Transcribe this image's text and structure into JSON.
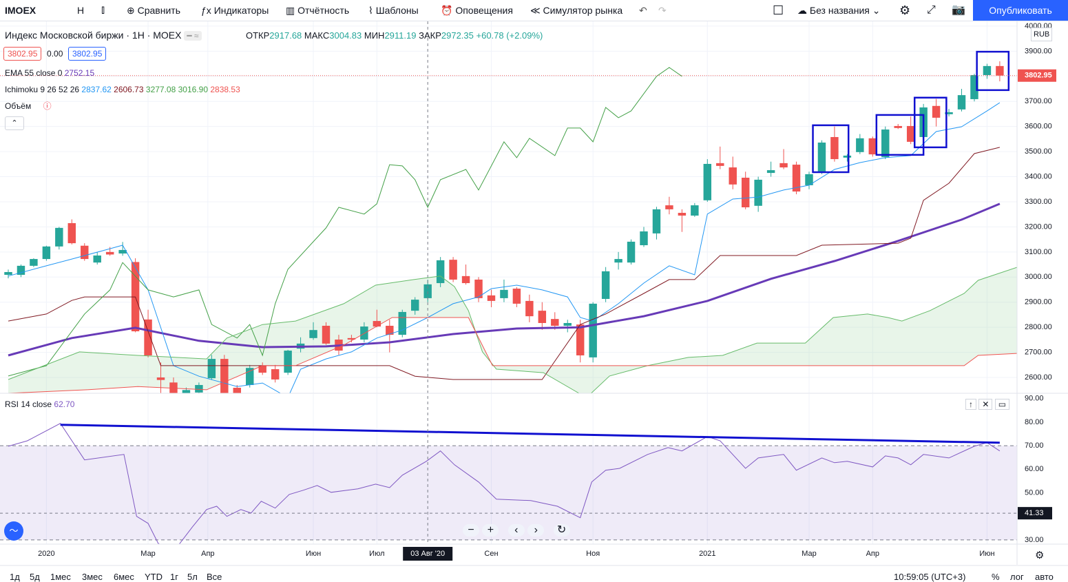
{
  "toolbar": {
    "symbol": "IMOEX",
    "interval": "Н",
    "items": [
      "Сравнить",
      "Индикаторы",
      "Отчётность",
      "Шаблоны",
      "Оповещения",
      "Симулятор рынка"
    ],
    "layout_name": "Без названия",
    "publish": "Опубликовать"
  },
  "legend": {
    "title": "Индекс Московской биржи · 1Н · MOEX",
    "ohlc": [
      {
        "label": "ОТКР",
        "value": "2917.68"
      },
      {
        "label": "МАКС",
        "value": "3004.83"
      },
      {
        "label": "МИН",
        "value": "2911.19"
      },
      {
        "label": "ЗАКР",
        "value": "2972.35"
      }
    ],
    "change": "+60.78 (+2.09%)",
    "bid": "3802.95",
    "spread": "0.00",
    "ask": "3802.95",
    "ema_name": "EMA 55 close 0",
    "ema_value": "2752.15",
    "ichimoku_name": "Ichimoku 9 26 52 26",
    "ichimoku_values": [
      "2837.62",
      "2606.73",
      "3277.08",
      "3016.90",
      "2838.53"
    ],
    "volume_name": "Объём",
    "rsi_name": "RSI 14 close",
    "rsi_value": "62.70",
    "currency": "RUB"
  },
  "bottom_bar": {
    "ranges": [
      "1д",
      "5д",
      "1мес",
      "3мес",
      "6мес",
      "YTD",
      "1г",
      "5л",
      "Все"
    ],
    "clock": "10:59:05 (UTC+3)",
    "options": [
      "%",
      "лог",
      "авто"
    ]
  },
  "chart_data": [
    {
      "type": "candlestick",
      "up_color": "#26a69a",
      "down_color": "#ef5350",
      "xlim": [
        -0.65,
        79.36
      ],
      "ylim": [
        2537,
        4019
      ],
      "xticks": [
        {
          "value": 3,
          "label": "2020"
        },
        {
          "value": 11,
          "label": "Мар"
        },
        {
          "value": 15.7,
          "label": "Апр"
        },
        {
          "value": 24,
          "label": "Июн"
        },
        {
          "value": 29,
          "label": "Июл"
        },
        {
          "value": 38,
          "label": "Сен"
        },
        {
          "value": 46,
          "label": "Ноя"
        },
        {
          "value": 55,
          "label": "2021"
        },
        {
          "value": 63,
          "label": "Мар"
        },
        {
          "value": 68,
          "label": "Апр"
        },
        {
          "value": 77,
          "label": "Июн"
        }
      ],
      "yticks": [
        {
          "value": 2600,
          "label": "2600.00"
        },
        {
          "value": 2700,
          "label": "2700.00"
        },
        {
          "value": 2800,
          "label": "2800.00"
        },
        {
          "value": 2900,
          "label": "2900.00"
        },
        {
          "value": 3000,
          "label": "3000.00"
        },
        {
          "value": 3100,
          "label": "3100.00"
        },
        {
          "value": 3200,
          "label": "3200.00"
        },
        {
          "value": 3300,
          "label": "3300.00"
        },
        {
          "value": 3400,
          "label": "3400.00"
        },
        {
          "value": 3500,
          "label": "3500.00"
        },
        {
          "value": 3600,
          "label": "3600.00"
        },
        {
          "value": 3700,
          "label": "3700.00"
        },
        {
          "value": 3800,
          "label": "3800.00"
        },
        {
          "value": 3900,
          "label": "3900.00"
        },
        {
          "value": 4000,
          "label": "4000.00"
        }
      ],
      "grid": true,
      "last_price": 3802.95,
      "x": [
        0,
        1,
        2,
        3,
        4,
        5,
        6,
        7,
        8,
        9,
        10,
        11,
        12,
        13,
        14,
        15,
        16,
        17,
        18,
        19,
        20,
        21,
        22,
        23,
        24,
        25,
        26,
        27,
        28,
        29,
        30,
        31,
        32,
        33,
        34,
        35,
        36,
        37,
        38,
        39,
        40,
        41,
        42,
        43,
        44,
        45,
        46,
        47,
        48,
        49,
        50,
        51,
        52,
        53,
        54,
        55,
        56,
        57,
        58,
        59,
        60,
        61,
        62,
        63,
        64,
        65,
        66,
        67,
        68,
        69,
        70,
        71,
        72,
        73,
        74,
        75,
        76,
        77,
        78
      ],
      "open": [
        3009,
        3009,
        3045,
        3072,
        3122,
        3215,
        3125,
        3058,
        3100,
        3094,
        3060,
        2831,
        2600,
        2580,
        2500,
        2540,
        2597,
        2674,
        2559,
        2570,
        2647,
        2633,
        2619,
        2715,
        2757,
        2806,
        2751,
        2757,
        2751,
        2825,
        2806,
        2770,
        2866,
        2916,
        2976,
        3069,
        3004,
        2990,
        2927,
        2916,
        2954,
        2905,
        2866,
        2833,
        2806,
        2811,
        2680,
        2913,
        3058,
        3058,
        3127,
        3174,
        3286,
        3256,
        3245,
        3306,
        3454,
        3437,
        3396,
        3284,
        3415,
        3454,
        3448,
        3366,
        3421,
        3558,
        3476,
        3498,
        3553,
        3478,
        3602,
        3602,
        3558,
        3682,
        3649,
        3668,
        3709,
        3805,
        3841
      ],
      "high": [
        3030,
        3050,
        3075,
        3125,
        3200,
        3230,
        3135,
        3100,
        3120,
        3140,
        3075,
        2870,
        2660,
        2600,
        2560,
        2580,
        2690,
        2690,
        2570,
        2650,
        2660,
        2650,
        2710,
        2760,
        2820,
        2820,
        2770,
        2770,
        2820,
        2870,
        2830,
        2870,
        2920,
        2990,
        3080,
        3080,
        3050,
        3000,
        2950,
        2990,
        2960,
        2930,
        2900,
        2860,
        2830,
        2830,
        2900,
        3040,
        3100,
        3150,
        3200,
        3280,
        3320,
        3270,
        3295,
        3470,
        3520,
        3480,
        3420,
        3400,
        3460,
        3510,
        3460,
        3420,
        3545,
        3600,
        3490,
        3570,
        3560,
        3600,
        3610,
        3640,
        3690,
        3710,
        3670,
        3750,
        3810,
        3850,
        3860
      ],
      "low": [
        2995,
        3000,
        3040,
        3065,
        3110,
        3130,
        3065,
        3050,
        3085,
        3085,
        2780,
        2680,
        2530,
        2500,
        2480,
        2520,
        2590,
        2520,
        2520,
        2560,
        2610,
        2580,
        2610,
        2700,
        2750,
        2730,
        2690,
        2740,
        2740,
        2800,
        2700,
        2760,
        2850,
        2900,
        2960,
        2980,
        2970,
        2900,
        2880,
        2900,
        2880,
        2820,
        2790,
        2790,
        2780,
        2660,
        2660,
        2900,
        3030,
        3050,
        3120,
        3150,
        3250,
        3180,
        3240,
        3300,
        3430,
        3350,
        3270,
        3260,
        3400,
        3430,
        3330,
        3350,
        3410,
        3460,
        3460,
        3490,
        3480,
        3470,
        3590,
        3530,
        3540,
        3600,
        3640,
        3660,
        3700,
        3790,
        3780
      ],
      "close": [
        3020,
        3045,
        3072,
        3122,
        3196,
        3135,
        3072,
        3086,
        3090,
        3108,
        2784,
        2688,
        2590,
        2520,
        2550,
        2570,
        2674,
        2537,
        2537,
        2638,
        2619,
        2592,
        2707,
        2735,
        2789,
        2735,
        2707,
        2751,
        2803,
        2803,
        2770,
        2861,
        2910,
        2971,
        3067,
        2990,
        2976,
        2916,
        2905,
        2949,
        2894,
        2844,
        2817,
        2806,
        2817,
        2688,
        2894,
        3023,
        3072,
        3141,
        3182,
        3270,
        3270,
        3245,
        3286,
        3451,
        3443,
        3369,
        3278,
        3388,
        3426,
        3437,
        3341,
        3410,
        3536,
        3470,
        3484,
        3553,
        3489,
        3588,
        3594,
        3539,
        3676,
        3635,
        3657,
        3725,
        3805,
        3841,
        3803
      ],
      "series": [
        {
          "name": "EMA 55",
          "color": "#673ab7",
          "x": [
            0,
            5,
            10,
            15,
            20,
            25,
            30,
            35,
            40,
            45,
            50,
            55,
            60,
            65,
            70,
            75,
            78
          ],
          "values": [
            2688,
            2757,
            2798,
            2746,
            2721,
            2724,
            2740,
            2773,
            2795,
            2800,
            2844,
            2905,
            2993,
            3064,
            3144,
            3229,
            3292
          ]
        },
        {
          "name": "Tenkan",
          "color": "#2196f3",
          "x": [
            0,
            3,
            5,
            8,
            9,
            11,
            13,
            15,
            18,
            20,
            22,
            23,
            25,
            27,
            29,
            31,
            33,
            35,
            37,
            38,
            40,
            42,
            44,
            45,
            46,
            48,
            50,
            52,
            54,
            55,
            57,
            59,
            61,
            63,
            65,
            67,
            69,
            71,
            73,
            75,
            77,
            78
          ],
          "values": [
            3004,
            3045,
            3072,
            3113,
            3127,
            2949,
            2647,
            2605,
            2564,
            2578,
            2520,
            2633,
            2674,
            2702,
            2757,
            2789,
            2839,
            2894,
            2921,
            2954,
            2968,
            2949,
            2921,
            2839,
            2825,
            2894,
            2976,
            3045,
            3009,
            3251,
            3311,
            3319,
            3347,
            3366,
            3429,
            3456,
            3476,
            3484,
            3580,
            3599,
            3662,
            3695
          ]
        },
        {
          "name": "Kijun",
          "color": "#801922",
          "x": [
            0,
            3,
            5,
            6,
            10,
            12,
            30,
            32,
            35,
            42,
            45,
            47,
            50,
            52,
            54,
            56,
            62,
            64,
            70,
            71,
            72,
            74,
            76,
            78
          ],
          "values": [
            2825,
            2853,
            2907,
            2921,
            2921,
            2647,
            2647,
            2605,
            2592,
            2592,
            2811,
            2853,
            2935,
            2990,
            2990,
            3086,
            3086,
            3127,
            3135,
            3155,
            3306,
            3374,
            3492,
            3517
          ]
        },
        {
          "name": "Chikou",
          "color": "#43a047",
          "x": [
            0,
            3,
            6,
            8,
            9,
            11,
            13,
            15,
            16,
            18,
            19,
            20,
            21,
            22,
            24,
            25,
            26,
            28,
            29,
            30,
            31,
            32,
            33,
            34,
            36,
            37,
            38,
            39,
            40,
            41,
            43,
            44,
            45,
            46,
            47,
            48,
            49,
            51,
            52,
            53
          ],
          "values": [
            2606,
            2647,
            2853,
            2949,
            3058,
            2949,
            2921,
            2949,
            2811,
            2757,
            2811,
            2688,
            2894,
            3031,
            3141,
            3196,
            3278,
            3251,
            3292,
            3448,
            3443,
            3388,
            3278,
            3388,
            3429,
            3347,
            3443,
            3539,
            3476,
            3553,
            3484,
            3594,
            3594,
            3539,
            3676,
            3635,
            3662,
            3800,
            3835,
            3800
          ]
        },
        {
          "name": "Span A",
          "color": "#66bb6a",
          "x": [
            0,
            5.6,
            10.2,
            15.6,
            17.2,
            20,
            22.6,
            26.4,
            28.9,
            31.9,
            34,
            35.1,
            36.2,
            37.3,
            38.4,
            42.1,
            44.9,
            45.5,
            47.3,
            50.3,
            53.5,
            56.2,
            58.9,
            62.7,
            64.9,
            67.6,
            69.2,
            70.3,
            72.5,
            75.2,
            76.3,
            79.36
          ],
          "values": [
            2592,
            2702,
            2688,
            2674,
            2757,
            2811,
            2825,
            2894,
            2968,
            2990,
            3004,
            2962,
            2866,
            2702,
            2633,
            2619,
            2537,
            2520,
            2606,
            2647,
            2680,
            2688,
            2737,
            2737,
            2839,
            2853,
            2839,
            2825,
            2866,
            2935,
            2987,
            3039
          ]
        },
        {
          "name": "Span B",
          "color": "#ef5350",
          "x": [
            0,
            6.2,
            10.2,
            15.6,
            20,
            22.6,
            26.4,
            30.2,
            36.2,
            38.1,
            75.2,
            76.3,
            79.36
          ],
          "values": [
            2537,
            2551,
            2564,
            2551,
            2647,
            2647,
            2729,
            2839,
            2839,
            2647,
            2647,
            2688,
            2696
          ]
        }
      ],
      "drawings": [
        {
          "x": [
            63.3,
            66.1
          ],
          "y": [
            3418,
            3605
          ]
        },
        {
          "x": [
            68.3,
            72.0
          ],
          "y": [
            3487,
            3646
          ]
        },
        {
          "x": [
            71.3,
            73.8
          ],
          "y": [
            3517,
            3715
          ]
        },
        {
          "x": [
            76.2,
            78.7
          ],
          "y": [
            3745,
            3898
          ]
        }
      ],
      "crosshair": {
        "x": 33,
        "label": "03 Авг '20"
      }
    },
    {
      "type": "line",
      "xlim": [
        -0.65,
        79.36
      ],
      "ylim": [
        28.2,
        92
      ],
      "yticks": [
        {
          "value": 30,
          "label": "30.00"
        },
        {
          "value": 40,
          "label": "40.00"
        },
        {
          "value": 50,
          "label": "50.00"
        },
        {
          "value": 60,
          "label": "60.00"
        },
        {
          "value": 70,
          "label": "70.00"
        },
        {
          "value": 80,
          "label": "80.00"
        },
        {
          "value": 90,
          "label": "90.00"
        }
      ],
      "band": [
        30,
        70
      ],
      "series": [
        {
          "name": "RSI",
          "color": "#7e57c2",
          "x": [
            0,
            1.5,
            4.1,
            6.0,
            9.1,
            10.1,
            11.0,
            11.8,
            13.0,
            14.5,
            15.6,
            16.4,
            17.2,
            18.3,
            19.1,
            19.9,
            21.0,
            22.1,
            23.2,
            24.3,
            25.4,
            27.5,
            28.9,
            30.0,
            31.0,
            32.9,
            34.0,
            35.1,
            37.0,
            38.4,
            41.1,
            43.2,
            45.0,
            45.9,
            47.0,
            48.1,
            50.3,
            51.9,
            53.0,
            55.0,
            56.0,
            58.0,
            59.0,
            61.0,
            62.0,
            64.0,
            65.0,
            66.0,
            68.0,
            69.0,
            70.0,
            71.0,
            72.0,
            74.0,
            76.0,
            77.0,
            78.0
          ],
          "values": [
            69.8,
            72.1,
            79.5,
            64,
            66.3,
            40,
            37,
            28.5,
            25,
            35.6,
            42.9,
            44.3,
            40,
            42.9,
            41.4,
            46.4,
            43.5,
            49.3,
            51.1,
            53.1,
            50.2,
            51.7,
            53.7,
            52.2,
            57.5,
            63.4,
            67.8,
            61.9,
            54.6,
            47.3,
            46.7,
            44.3,
            39.4,
            54.6,
            59.6,
            60.4,
            66.3,
            69.2,
            67.8,
            73.9,
            72.1,
            60.4,
            64.8,
            66.3,
            59.6,
            64.8,
            62.8,
            63.4,
            61,
            65.7,
            64.8,
            61.9,
            66.3,
            64.8,
            69.8,
            71.3,
            67.8
          ]
        }
      ],
      "trendline": {
        "x": [
          4.1,
          78
        ],
        "y": [
          78.9,
          71.3
        ]
      },
      "crosshair": {
        "y": 41.33
      }
    }
  ]
}
